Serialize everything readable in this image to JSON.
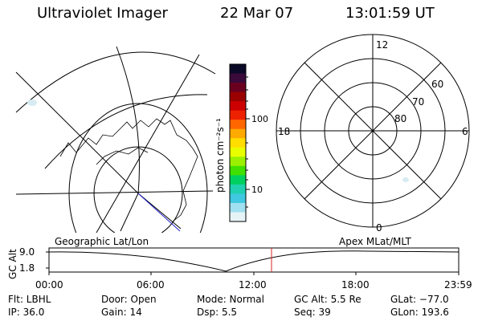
{
  "header": {
    "title": "Ultraviolet Imager",
    "date": "22 Mar 07",
    "time": "13:01:59 UT"
  },
  "colorbar": {
    "unit_label": "photon cm⁻²s⁻¹",
    "ticks": [
      "100",
      "10"
    ],
    "colors": [
      "#0a0a28",
      "#3a0a3a",
      "#6a0020",
      "#9a0000",
      "#cc0000",
      "#ee2200",
      "#ff6600",
      "#ffaa00",
      "#ffdd00",
      "#e8ff00",
      "#9af000",
      "#40e000",
      "#00d060",
      "#20d0b0",
      "#40c8e0",
      "#a0e0f0",
      "#e6f4f8"
    ]
  },
  "geo_map": {
    "label": "Geographic Lat/Lon"
  },
  "polar_plot": {
    "label": "Apex MLat/MLT",
    "mlt_labels": [
      "12",
      "18",
      "6",
      "0"
    ],
    "lat_labels": [
      "60",
      "70",
      "80"
    ]
  },
  "timeline": {
    "axis_label": "GC Alt",
    "y_ticks": [
      "9.0",
      "1.8"
    ],
    "x_ticks": [
      "00:00",
      "06:00",
      "12:00",
      "18:00",
      "23:59"
    ],
    "current_marker_time": "13:01:59",
    "marker_color": "#dd2222"
  },
  "info": {
    "flt": "Flt: LBHL",
    "ip": "IP: 36.0",
    "door": "Door: Open",
    "gain": "Gain: 14",
    "mode": "Mode: Normal",
    "dsp": "Dsp:     5.5",
    "gcalt": "GC Alt: 5.5 Re",
    "seq": "Seq: 39",
    "glat": "GLat: −77.0",
    "glon": "GLon: 193.6"
  }
}
